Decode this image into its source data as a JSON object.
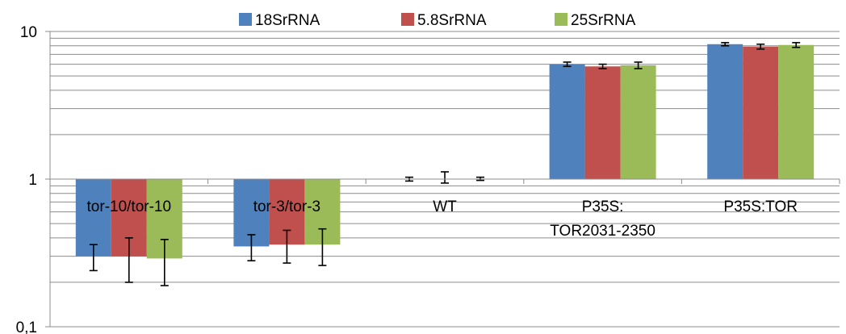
{
  "chart_data": {
    "type": "bar",
    "title": "",
    "xlabel": "",
    "ylabel": "",
    "yscale": "log",
    "ylim": [
      0.1,
      10
    ],
    "ytick_labels": [
      "0,1",
      "1",
      "10"
    ],
    "grid": "horizontal, minor log gridlines",
    "legend_position": "top",
    "categories": [
      [
        "tor-10/tor-10"
      ],
      [
        "tor-3/tor-3"
      ],
      [
        "WT"
      ],
      [
        "P35S:",
        "TOR2031-2350"
      ],
      [
        "P35S:TOR"
      ]
    ],
    "series": [
      {
        "name": "18SrRNA",
        "color": "#4F81BD",
        "values": [
          0.3,
          0.35,
          1.0,
          6.0,
          8.2
        ],
        "err_low": [
          0.24,
          0.28,
          0.97,
          5.8,
          8.0
        ],
        "err_high": [
          0.36,
          0.42,
          1.03,
          6.2,
          8.4
        ]
      },
      {
        "name": "5.8SrRNA",
        "color": "#C0504D",
        "values": [
          0.3,
          0.36,
          1.0,
          5.8,
          7.9
        ],
        "err_low": [
          0.2,
          0.27,
          0.94,
          5.6,
          7.6
        ],
        "err_high": [
          0.4,
          0.45,
          1.12,
          6.0,
          8.2
        ]
      },
      {
        "name": "25SrRNA",
        "color": "#9BBB59",
        "values": [
          0.29,
          0.36,
          1.0,
          5.9,
          8.1
        ],
        "err_low": [
          0.19,
          0.26,
          0.98,
          5.6,
          7.8
        ],
        "err_high": [
          0.39,
          0.46,
          1.03,
          6.2,
          8.4
        ]
      }
    ]
  }
}
